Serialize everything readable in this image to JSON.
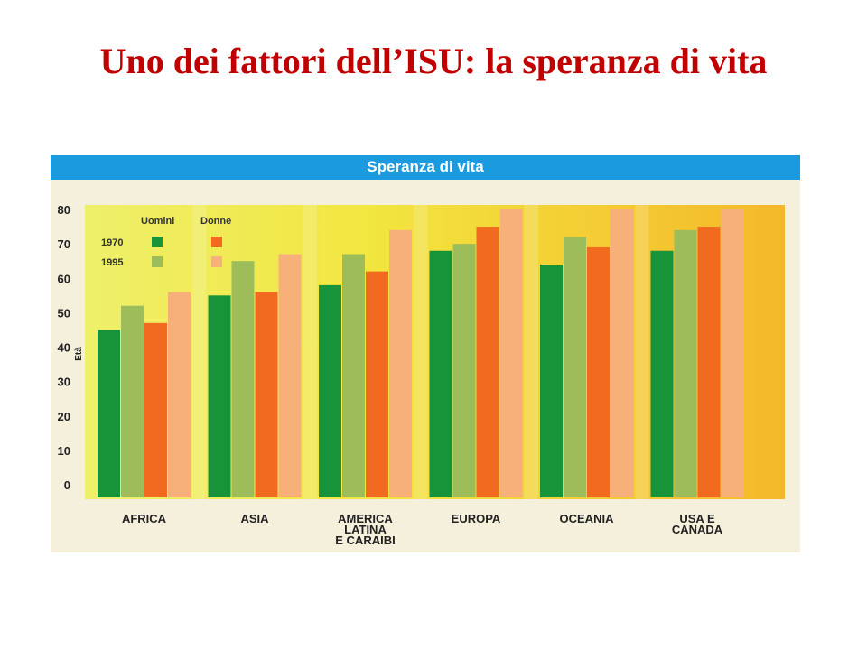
{
  "slide": {
    "title": "Uno dei fattori dell’ISU: la speranza di vita"
  },
  "colors": {
    "title": "#c00000",
    "header": "#1c9ae0",
    "men_1970": "#17943a",
    "men_1995": "#9dbc5a",
    "women_1970": "#f26a1f",
    "women_1995": "#f7b07a",
    "plot_bg_left": "#eef06a",
    "plot_bg_right": "#f5b82a"
  },
  "chart_data": {
    "type": "bar",
    "title": "Speranza di vita",
    "xlabel": "",
    "ylabel": "Età",
    "ylim": [
      0,
      80
    ],
    "yticks": [
      0,
      10,
      20,
      30,
      40,
      50,
      60,
      70,
      80
    ],
    "categories": [
      [
        "AFRICA"
      ],
      [
        "ASIA"
      ],
      [
        "AMERICA",
        "LATINA",
        "E CARAIBI"
      ],
      [
        "EUROPA"
      ],
      [
        "OCEANIA"
      ],
      [
        "USA E",
        "CANADA"
      ]
    ],
    "legend": {
      "group_labels": [
        "Uomini",
        "Donne"
      ],
      "year_labels": [
        "1970",
        "1995"
      ],
      "placement": "top-left"
    },
    "series": [
      {
        "name": "Uomini 1970",
        "color": "#17943a",
        "values": [
          45,
          55,
          58,
          68,
          64,
          68
        ]
      },
      {
        "name": "Uomini 1995",
        "color": "#9dbc5a",
        "values": [
          52,
          65,
          67,
          70,
          72,
          74
        ]
      },
      {
        "name": "Donne 1970",
        "color": "#f26a1f",
        "values": [
          47,
          56,
          62,
          75,
          69,
          75
        ]
      },
      {
        "name": "Donne 1995",
        "color": "#f7b07a",
        "values": [
          56,
          67,
          74,
          80,
          80,
          80
        ]
      }
    ],
    "grid": false
  }
}
